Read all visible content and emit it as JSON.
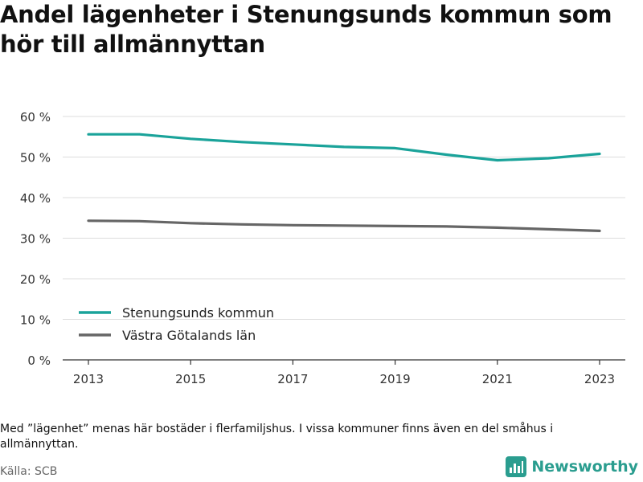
{
  "title": "Andel lägenheter i Stenungsunds kommun som hör till allmännyttan",
  "note": "Med ”lägenhet” menas här bostäder i flerfamiljshus. I vissa kommuner finns även en del småhus i allmännyttan.",
  "source": "Källa: SCB",
  "brand": {
    "name": "Newsworthy",
    "color": "#2a9d8f"
  },
  "chart_data": {
    "type": "line",
    "x": [
      2013,
      2014,
      2015,
      2016,
      2017,
      2018,
      2019,
      2020,
      2021,
      2022,
      2023
    ],
    "series": [
      {
        "name": "Stenungsunds kommun",
        "color": "#1aa39a",
        "values": [
          55.6,
          55.6,
          54.5,
          53.7,
          53.1,
          52.5,
          52.2,
          50.6,
          49.2,
          49.7,
          50.8
        ]
      },
      {
        "name": "Västra Götalands län",
        "color": "#666666",
        "values": [
          34.3,
          34.2,
          33.7,
          33.4,
          33.2,
          33.1,
          33.0,
          32.9,
          32.6,
          32.2,
          31.8
        ]
      }
    ],
    "x_ticks": [
      2013,
      2015,
      2017,
      2019,
      2021,
      2023
    ],
    "y_ticks": [
      0,
      10,
      20,
      30,
      40,
      50,
      60
    ],
    "y_tick_suffix": " %",
    "ylim": [
      0,
      60
    ],
    "grid": true,
    "legend_position": "bottom-left"
  }
}
